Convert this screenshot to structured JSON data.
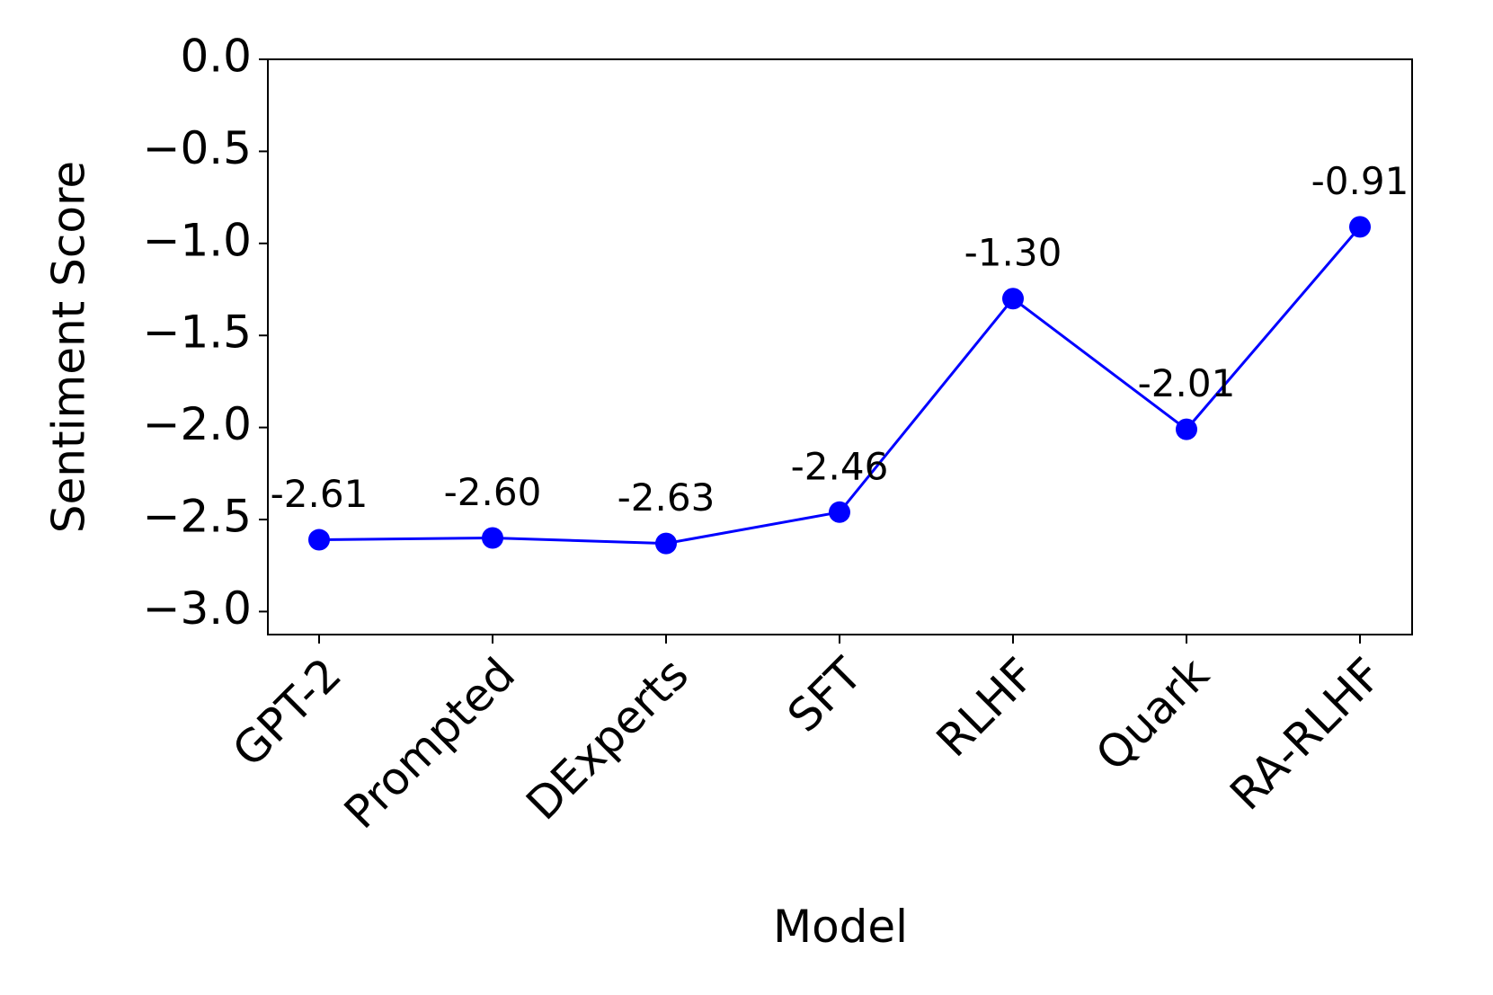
{
  "chart_data": {
    "type": "line",
    "x_label": "Model",
    "y_label": "Sentiment Score",
    "categories": [
      "GPT-2",
      "Prompted",
      "DExperts",
      "SFT",
      "RLHF",
      "Quark",
      "RA-RLHF"
    ],
    "series": [
      {
        "color": "#0000ff",
        "values": [
          -2.61,
          -2.6,
          -2.63,
          -2.46,
          -1.3,
          -2.01,
          -0.91
        ],
        "value_labels": [
          "-2.61",
          "-2.60",
          "-2.63",
          "-2.46",
          "-1.30",
          "-2.01",
          "-0.91"
        ]
      }
    ],
    "ylim": [
      -3.125,
      0
    ],
    "yticks": [
      {
        "value": 0,
        "label": "0.0"
      },
      {
        "value": -0.5,
        "label": "−0.5"
      },
      {
        "value": -1.0,
        "label": "−1.0"
      },
      {
        "value": -1.5,
        "label": "−1.5"
      },
      {
        "value": -2.0,
        "label": "−2.0"
      },
      {
        "value": -2.5,
        "label": "−2.5"
      },
      {
        "value": -3.0,
        "label": "−3.0"
      }
    ]
  }
}
